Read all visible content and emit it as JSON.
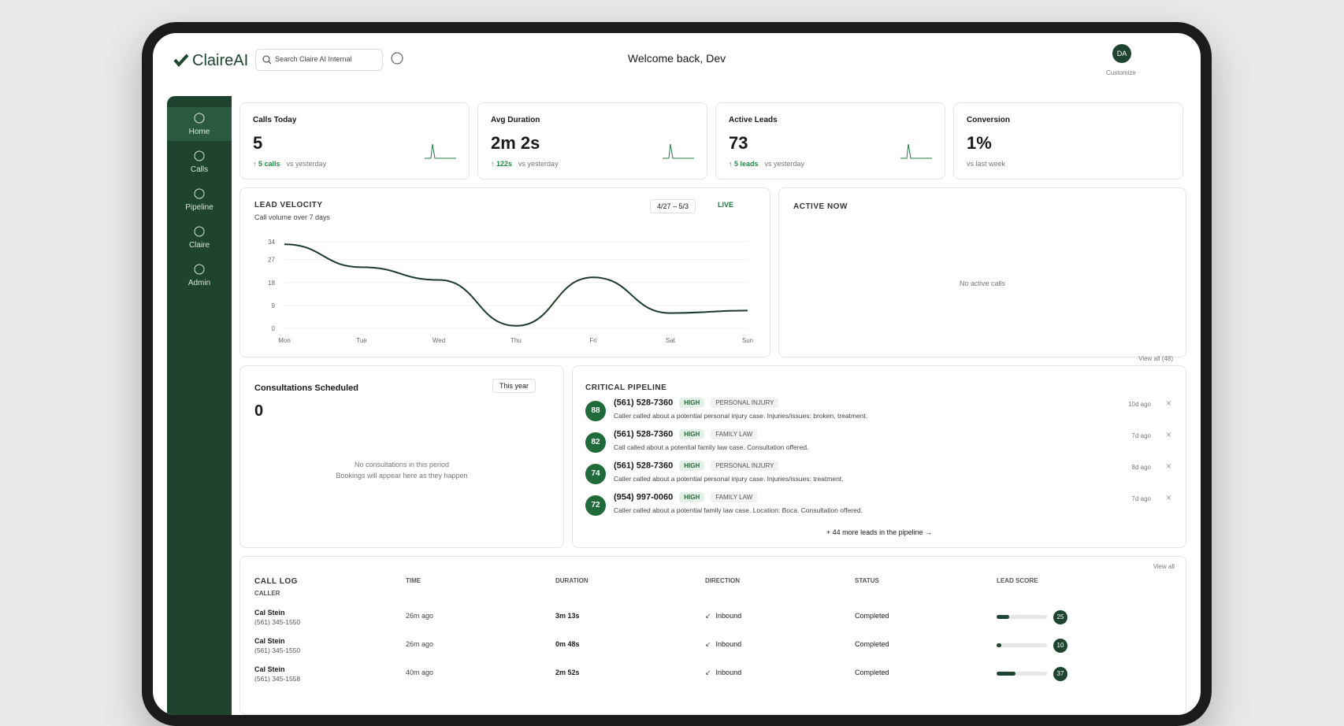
{
  "header": {
    "brand": "ClaireAI",
    "search": "Search Claire AI Internal",
    "welcome": "Welcome back, Dev",
    "avatar": "DA",
    "customize": "Customize"
  },
  "nav": [
    {
      "label": "Home"
    },
    {
      "label": "Calls"
    },
    {
      "label": "Pipeline"
    },
    {
      "label": "Claire"
    },
    {
      "label": "Admin"
    }
  ],
  "stats": [
    {
      "label": "Calls Today",
      "value": "5",
      "delta": "5 calls",
      "note": "vs yesterday"
    },
    {
      "label": "Avg Duration",
      "value": "2m 2s",
      "delta": "122s",
      "note": "vs yesterday"
    },
    {
      "label": "Active Leads",
      "value": "73",
      "delta": "5 leads",
      "note": "vs yesterday"
    },
    {
      "label": "Conversion",
      "value": "1%",
      "note": "vs last week"
    }
  ],
  "lead_velocity": {
    "title": "LEAD VELOCITY",
    "subtitle": "Call volume over 7 days",
    "range": "4/27 – 5/3",
    "live": "LIVE",
    "chart_data": {
      "type": "line",
      "categories": [
        "Mon",
        "Tue",
        "Wed",
        "Thu",
        "Fri",
        "Sat",
        "Sun"
      ],
      "values": [
        33,
        24,
        19,
        1,
        20,
        6,
        7
      ],
      "color": "#1d3b2a",
      "ylim": [
        0,
        34
      ],
      "yticks": [
        0,
        9,
        18,
        27,
        34
      ]
    }
  },
  "active_now": {
    "title": "ACTIVE NOW",
    "empty": "No active calls"
  },
  "consultations": {
    "title": "Consultations Scheduled",
    "count": "0",
    "filter": "This year",
    "empty": "No consultations in this period",
    "hint": "Bookings will appear here as they happen"
  },
  "pipeline": {
    "title": "CRITICAL PIPELINE",
    "view_all": "View all (48)",
    "leads": [
      {
        "score": "88",
        "phone": "(561) 528-7360",
        "priority": "HIGH",
        "area": "PERSONAL INJURY",
        "summary": "Caller called about a potential personal injury case. Injuries/issues: broken, treatment.",
        "age": "10d ago"
      },
      {
        "score": "82",
        "phone": "(561) 528-7360",
        "priority": "HIGH",
        "area": "FAMILY LAW",
        "summary": "Call called about a potential family law case. Consultation offered.",
        "age": "7d ago"
      },
      {
        "score": "74",
        "phone": "(561) 528-7360",
        "priority": "HIGH",
        "area": "PERSONAL INJURY",
        "summary": "Caller called about a potential personal injury case. Injuries/issues: treatment.",
        "age": "8d ago"
      },
      {
        "score": "72",
        "phone": "(954) 997-0060",
        "priority": "HIGH",
        "area": "FAMILY LAW",
        "summary": "Caller called about a potential family law case. Location: Boca. Consultation offered.",
        "age": "7d ago"
      }
    ],
    "more": "+ 44 more leads in the pipeline →"
  },
  "call_log": {
    "title": "CALL LOG",
    "view_all": "View all",
    "columns": [
      "CALLER",
      "TIME",
      "DURATION",
      "DIRECTION",
      "STATUS",
      "LEAD SCORE"
    ],
    "rows": [
      {
        "name": "Cal Stein",
        "phone": "(561) 345-1550",
        "time": "26m ago",
        "duration": "3m 13s",
        "direction": "Inbound",
        "status": "Completed",
        "score": 25
      },
      {
        "name": "Cal Stein",
        "phone": "(561) 345-1550",
        "time": "26m ago",
        "duration": "0m 48s",
        "direction": "Inbound",
        "status": "Completed",
        "score": 10
      },
      {
        "name": "Cal Stein",
        "phone": "(561) 345-1558",
        "time": "40m ago",
        "duration": "2m 52s",
        "direction": "Inbound",
        "status": "Completed",
        "score": 37
      }
    ]
  }
}
